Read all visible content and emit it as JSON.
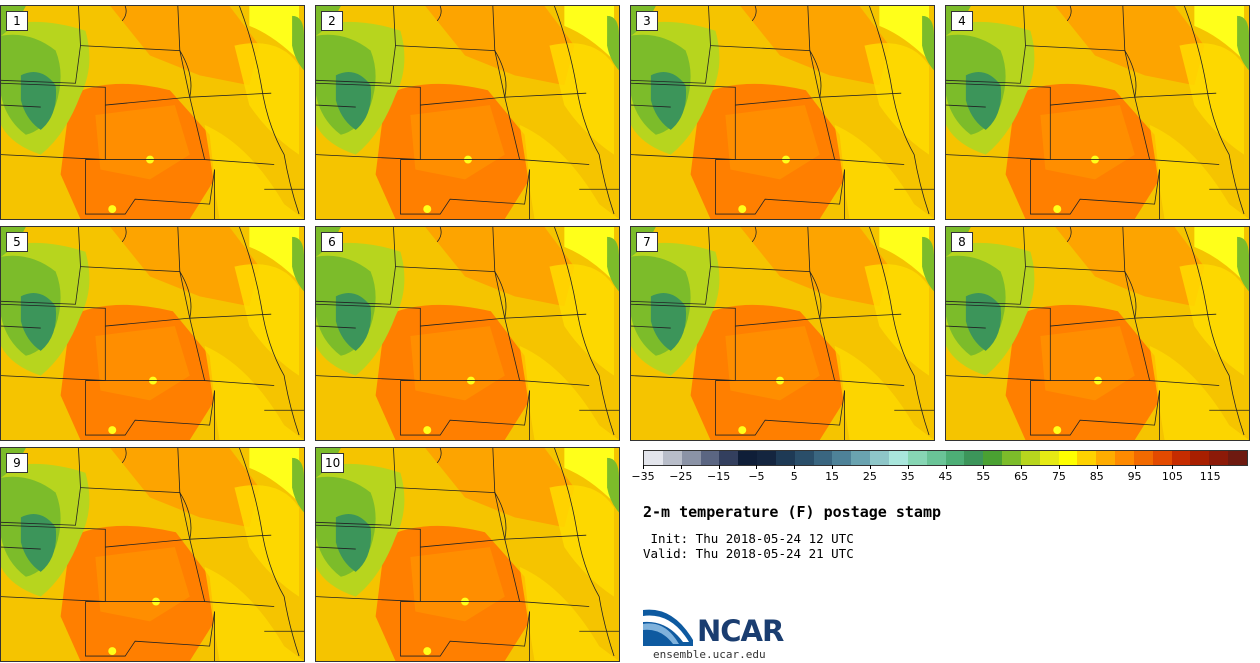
{
  "product": {
    "title": "2-m temperature (F) postage stamp",
    "init": " Init: Thu 2018-05-24 12 UTC",
    "valid": "Valid: Thu 2018-05-24 21 UTC"
  },
  "members": [
    "1",
    "2",
    "3",
    "4",
    "5",
    "6",
    "7",
    "8",
    "9",
    "10"
  ],
  "colorbar": {
    "ticks": [
      "−35",
      "−25",
      "−15",
      "−5",
      "5",
      "15",
      "25",
      "35",
      "45",
      "55",
      "65",
      "75",
      "85",
      "95",
      "105",
      "115"
    ],
    "colors": [
      "#e3e5ec",
      "#b8bdc9",
      "#8b93a6",
      "#5b6682",
      "#333f5e",
      "#0f1e38",
      "#14253f",
      "#1e3a55",
      "#2a4e69",
      "#3a6680",
      "#4e8298",
      "#6aa3b0",
      "#8ec6c8",
      "#a9e6dc",
      "#87d6b4",
      "#6ac497",
      "#4dae76",
      "#3c955a",
      "#4aa132",
      "#7cbc2a",
      "#b7d51e",
      "#e6ea14",
      "#ffff00",
      "#ffd200",
      "#ffac00",
      "#ff8a00",
      "#f26a00",
      "#e34a00",
      "#c62c00",
      "#a81f00",
      "#8c1a08",
      "#6e1a10"
    ]
  },
  "logo": {
    "text": "NCAR",
    "site": "ensemble.ucar.edu"
  },
  "map_colors": {
    "base": "#f5c400",
    "warm": "#ff9a00",
    "hot": "#ff7f00",
    "mild": "#ffdd00",
    "cool": "#ffff1a",
    "green_light": "#b7d51e",
    "green_mid": "#7cbc2a",
    "green_dark": "#3c955a",
    "border": "#222222"
  }
}
